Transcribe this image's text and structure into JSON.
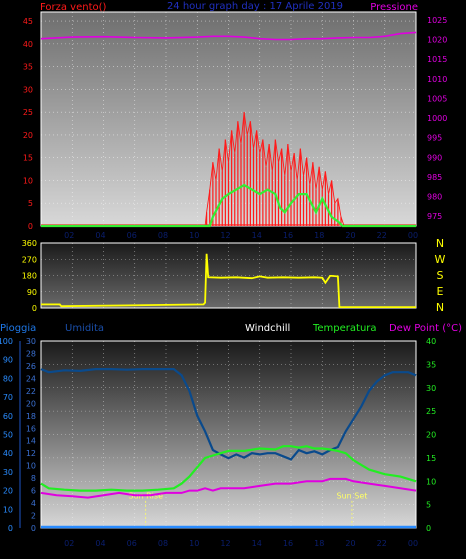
{
  "colors": {
    "background": "#000000",
    "wind": "#ff1a1a",
    "gust_avg": "#33ee33",
    "pressure": "#e000e0",
    "direction": "#ffff00",
    "humidity": "#0a4a8c",
    "temperature": "#22ee22",
    "dewpoint": "#e000e0",
    "rain": "#2a8cff",
    "sun_markers": "#ffff66",
    "time_labels": "#0a1e6e"
  },
  "header": {
    "left_title": "Forza vento()",
    "center_title": "24 hour graph day : 17 Aprile 2019",
    "right_title": "Pressione"
  },
  "panel2_labels": {
    "compass": [
      "N",
      "W",
      "S",
      "E",
      "N"
    ]
  },
  "panel3_labels": {
    "rain": "Pioggia",
    "humidity": "Umidita",
    "windchill": "Windchill",
    "temperature": "Temperatura",
    "dewpoint": "Dew Point (°C)",
    "sunrise": "Sun Rise",
    "sunset": "Sun Set"
  },
  "chart_data": [
    {
      "type": "line",
      "name": "wind-pressure",
      "x_tick_labels": [
        "02",
        "04",
        "06",
        "08",
        "10",
        "12",
        "14",
        "16",
        "18",
        "20",
        "22",
        "00"
      ],
      "x_ticks_hours": [
        2,
        4,
        6,
        8,
        10,
        12,
        14,
        16,
        18,
        20,
        22,
        24
      ],
      "xlim": [
        0,
        24
      ],
      "left_axis": {
        "ylim": [
          0,
          47
        ],
        "ticks": [
          0,
          5,
          10,
          15,
          20,
          25,
          30,
          35,
          40,
          45
        ]
      },
      "right_axis": {
        "ylim": [
          972.5,
          1027
        ],
        "ticks": [
          975,
          980,
          985,
          990,
          995,
          1000,
          1005,
          1010,
          1015,
          1020,
          1025
        ]
      },
      "series": [
        {
          "axis": "right",
          "x": [
            0,
            2,
            4,
            6,
            8,
            10,
            11,
            12,
            13,
            14,
            15,
            16,
            17,
            18,
            19,
            20,
            21,
            22,
            23,
            24
          ],
          "values": [
            1020.2,
            1020.6,
            1020.7,
            1020.5,
            1020.4,
            1020.6,
            1020.8,
            1020.8,
            1020.6,
            1020.2,
            1020.0,
            1020.0,
            1020.2,
            1020.2,
            1020.4,
            1020.5,
            1020.5,
            1020.8,
            1021.5,
            1021.8
          ]
        },
        {
          "axis": "left",
          "x": [
            0,
            10.5,
            10.6,
            10.8,
            11.0,
            11.2,
            11.4,
            11.6,
            11.8,
            12.0,
            12.2,
            12.4,
            12.6,
            12.8,
            13.0,
            13.2,
            13.4,
            13.6,
            13.8,
            14.0,
            14.2,
            14.4,
            14.6,
            14.8,
            15.0,
            15.2,
            15.4,
            15.6,
            15.8,
            16.0,
            16.2,
            16.4,
            16.6,
            16.8,
            17.0,
            17.2,
            17.4,
            17.6,
            17.8,
            18.0,
            18.2,
            18.4,
            18.6,
            18.8,
            19.0,
            19.2,
            19.4,
            24
          ],
          "values": [
            0,
            0,
            3,
            8,
            14,
            10,
            17,
            12,
            19,
            14,
            21,
            16,
            23,
            18,
            25,
            20,
            23,
            17,
            21,
            16,
            19,
            13,
            18,
            12,
            19,
            14,
            17,
            11,
            18,
            12,
            16,
            10,
            17,
            11,
            15,
            9,
            14,
            8,
            13,
            8,
            12,
            7,
            10,
            5,
            6,
            2,
            0,
            0
          ]
        },
        {
          "axis": "left",
          "x": [
            0,
            10.8,
            11.0,
            11.3,
            11.6,
            12.0,
            12.5,
            13.0,
            13.5,
            14.0,
            14.5,
            15.0,
            15.3,
            15.6,
            16.0,
            16.5,
            17.0,
            17.3,
            17.6,
            18.0,
            18.3,
            18.6,
            19.0,
            19.3,
            24
          ],
          "values": [
            0,
            0,
            2,
            4,
            6,
            7,
            8,
            9,
            8,
            7,
            8,
            7,
            4,
            3,
            5,
            7,
            7,
            5,
            3,
            6,
            4,
            2,
            1,
            0,
            0
          ]
        }
      ]
    },
    {
      "type": "line",
      "name": "wind-direction",
      "xlim": [
        0,
        24
      ],
      "ylim": [
        0,
        360
      ],
      "y_ticks": [
        0,
        90,
        180,
        270,
        360
      ],
      "series": [
        {
          "x": [
            0,
            1.2,
            1.3,
            10.4,
            10.5,
            10.6,
            10.7,
            11.5,
            12.5,
            13.5,
            14.0,
            14.5,
            15.5,
            16.5,
            17.5,
            18.0,
            18.2,
            18.5,
            18.6,
            19.0,
            19.1,
            24
          ],
          "values": [
            20,
            20,
            10,
            20,
            30,
            300,
            170,
            168,
            170,
            165,
            175,
            168,
            170,
            168,
            170,
            168,
            140,
            178,
            178,
            175,
            5,
            5
          ]
        }
      ]
    },
    {
      "type": "line",
      "name": "temperature-humidity-rain",
      "x_tick_labels": [
        "02",
        "04",
        "06",
        "08",
        "10",
        "12",
        "14",
        "16",
        "18",
        "20",
        "22",
        "00"
      ],
      "xlim": [
        0,
        24
      ],
      "left_axis_rain": {
        "ylim": [
          0,
          100
        ],
        "ticks": [
          0,
          10,
          20,
          30,
          40,
          50,
          60,
          70,
          80,
          90,
          100
        ]
      },
      "left_axis_humidity": {
        "ylim": [
          0,
          30
        ],
        "ticks": [
          0,
          2,
          4,
          6,
          8,
          10,
          12,
          14,
          16,
          18,
          20,
          22,
          24,
          26,
          28,
          30
        ]
      },
      "right_axis": {
        "ylim": [
          0,
          40
        ],
        "ticks": [
          0,
          5,
          10,
          15,
          20,
          25,
          30,
          35,
          40
        ]
      },
      "sunrise_hour": 6.7,
      "sunset_hour": 19.9,
      "series": [
        {
          "axis": "humidity",
          "x": [
            0,
            0.5,
            1.5,
            2.5,
            3.5,
            4.5,
            5.5,
            6.5,
            7.5,
            8.5,
            9.0,
            9.5,
            10.0,
            10.5,
            11.0,
            11.5,
            12.0,
            12.5,
            13.0,
            13.5,
            14.0,
            14.5,
            15.0,
            15.5,
            16.0,
            16.5,
            17.0,
            17.5,
            18.0,
            18.5,
            19.0,
            19.5,
            20.0,
            20.5,
            21.0,
            21.5,
            22.0,
            22.5,
            23.0,
            23.5,
            24
          ],
          "values": [
            25.5,
            25,
            25.3,
            25.2,
            25.5,
            25.5,
            25.4,
            25.5,
            25.5,
            25.5,
            24.5,
            22,
            18,
            15.5,
            12.5,
            11.8,
            11.2,
            11.8,
            11.3,
            12.0,
            11.8,
            12.0,
            12.0,
            11.5,
            11.0,
            12.5,
            12.0,
            12.3,
            11.8,
            12.5,
            13.0,
            15.5,
            17.5,
            19.5,
            22,
            23.5,
            24.5,
            25,
            25,
            25,
            24.5
          ]
        },
        {
          "axis": "right",
          "x": [
            0,
            0.5,
            1.5,
            2.5,
            3.5,
            4.5,
            5.5,
            6.5,
            7.5,
            8.5,
            9.0,
            9.5,
            10.0,
            10.5,
            11.0,
            11.5,
            12.0,
            13.0,
            14.0,
            15.0,
            15.5,
            16.0,
            16.5,
            17.0,
            17.5,
            18.0,
            18.5,
            19.0,
            19.5,
            20.0,
            20.5,
            21.0,
            22.0,
            23.0,
            24
          ],
          "values": [
            9.5,
            8.5,
            8.2,
            8.0,
            8.0,
            8.2,
            8.0,
            8.0,
            8.2,
            8.5,
            9.5,
            11.0,
            13.0,
            15.0,
            15.5,
            16.0,
            16.5,
            16.5,
            17.0,
            16.8,
            17.5,
            17.5,
            17.2,
            17.5,
            17.0,
            17.0,
            16.8,
            16.5,
            16.0,
            14.5,
            13.5,
            12.5,
            11.5,
            11.0,
            10.0
          ]
        },
        {
          "axis": "right",
          "x": [
            0,
            1,
            2,
            3,
            4,
            5,
            6,
            7,
            8,
            9,
            9.5,
            10,
            10.5,
            11,
            11.5,
            12,
            13,
            14,
            15,
            16,
            17,
            18,
            18.5,
            19,
            19.5,
            20,
            21,
            22,
            23,
            24
          ],
          "values": [
            7.5,
            7.0,
            6.8,
            6.5,
            7.0,
            7.5,
            7.0,
            7.0,
            7.5,
            7.5,
            8.0,
            8.0,
            8.5,
            8.0,
            8.5,
            8.5,
            8.5,
            9.0,
            9.5,
            9.5,
            10.0,
            10.0,
            10.5,
            10.5,
            10.5,
            10.0,
            9.5,
            9.0,
            8.5,
            8.0
          ]
        },
        {
          "axis": "rain",
          "x": [
            0,
            24
          ],
          "values": [
            0,
            0
          ]
        }
      ]
    }
  ]
}
